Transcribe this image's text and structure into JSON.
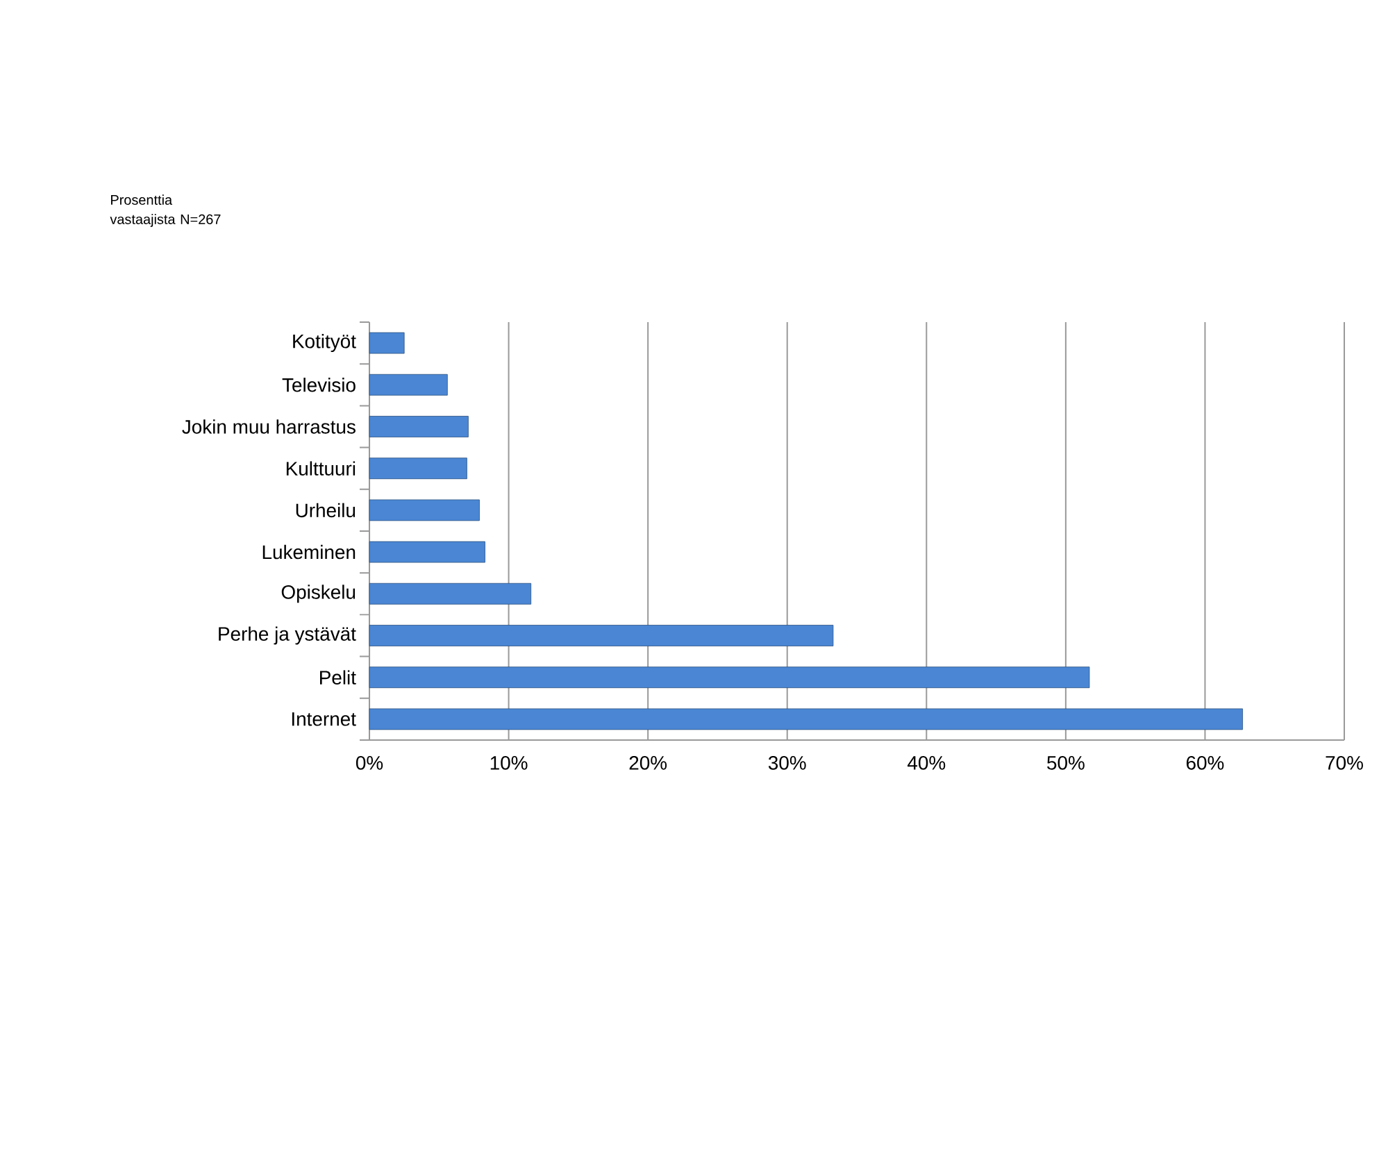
{
  "chart_data": {
    "type": "bar",
    "orientation": "horizontal",
    "title": "Prosenttia vastaajista N=267",
    "categories": [
      "Kotityöt",
      "Televisio",
      "Jokin muu harrastus",
      "Kulttuuri",
      "Urheilu",
      "Lukeminen",
      "Opiskelu",
      "Perhe ja ystävät",
      "Pelit",
      "Internet"
    ],
    "values": [
      2.5,
      5.6,
      7.1,
      7.0,
      7.9,
      8.3,
      11.6,
      33.3,
      51.7,
      62.7
    ],
    "color": "#4a86d4",
    "xlim": [
      0,
      70
    ],
    "xticks": [
      {
        "value": 0,
        "label": "0%"
      },
      {
        "value": 10,
        "label": "10%"
      },
      {
        "value": 20,
        "label": "20%"
      },
      {
        "value": 30,
        "label": "30%"
      },
      {
        "value": 40,
        "label": "40%"
      },
      {
        "value": 50,
        "label": "50%"
      },
      {
        "value": 60,
        "label": "60%"
      },
      {
        "value": 70,
        "label": "70%"
      }
    ],
    "grid": "x"
  }
}
